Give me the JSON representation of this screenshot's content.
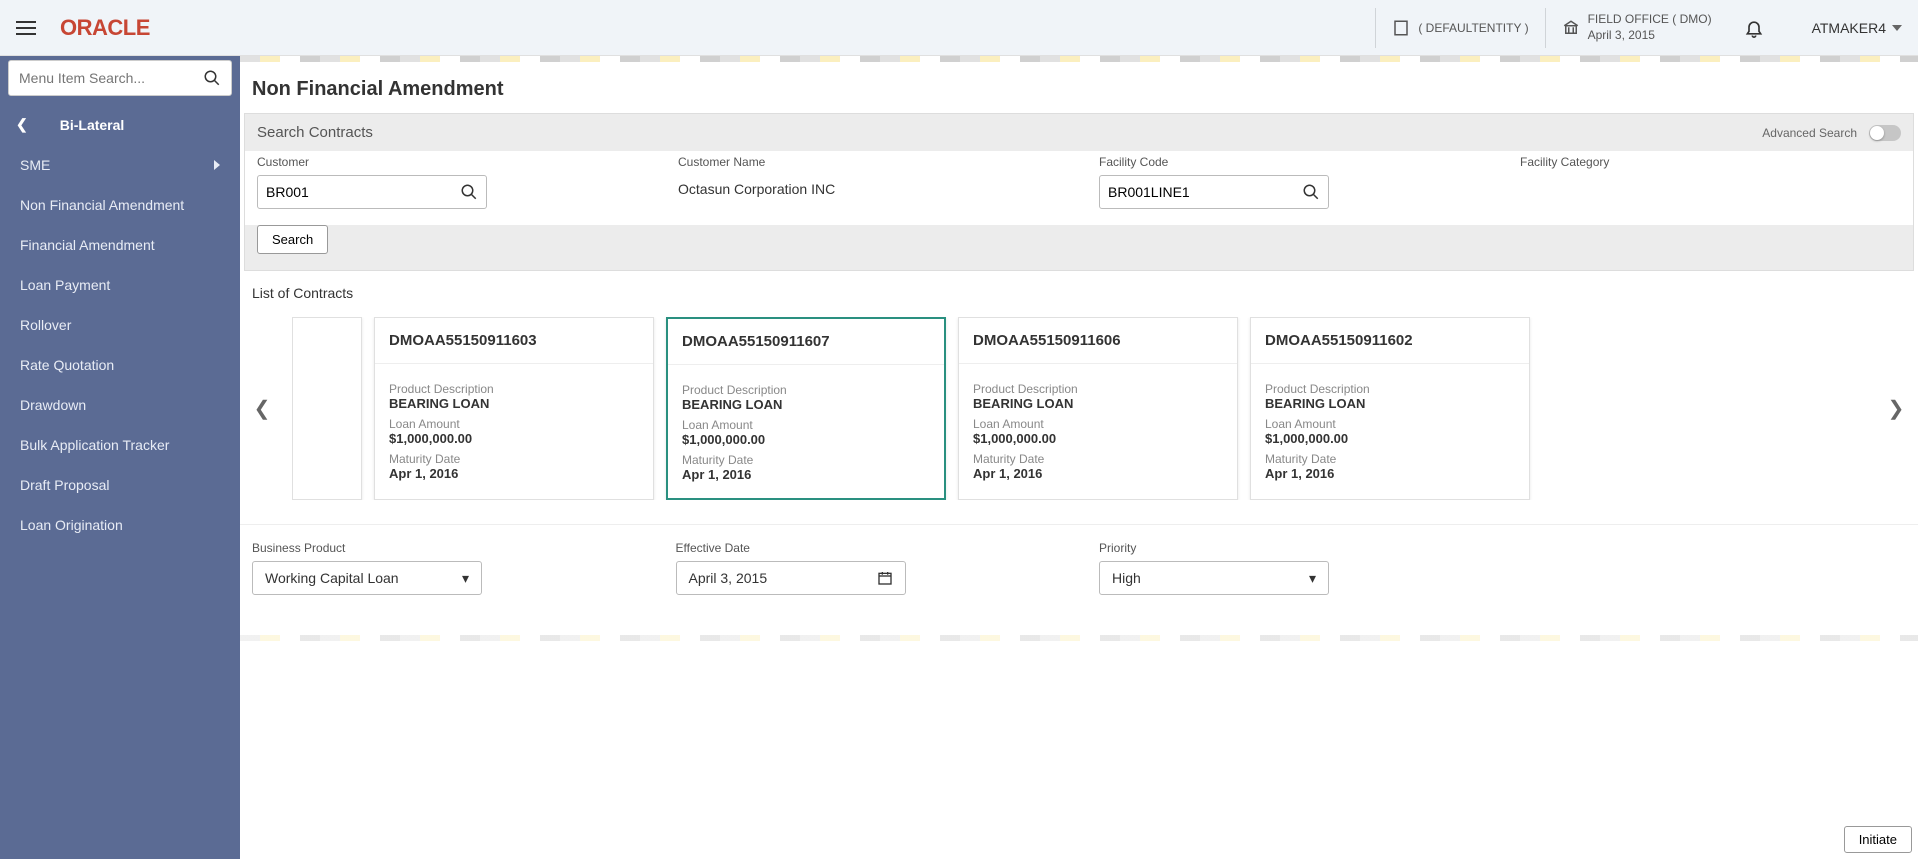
{
  "topbar": {
    "logo_text": "ORACLE",
    "entity_label": "( DEFAULTENTITY )",
    "office_label": "FIELD OFFICE ( DMO)",
    "office_date": "April 3, 2015",
    "user_name": "ATMAKER4"
  },
  "sidebar": {
    "search_placeholder": "Menu Item Search...",
    "header_label": "Bi-Lateral",
    "items": [
      {
        "label": "SME",
        "has_children": true
      },
      {
        "label": "Non Financial Amendment",
        "has_children": false
      },
      {
        "label": "Financial Amendment",
        "has_children": false
      },
      {
        "label": "Loan Payment",
        "has_children": false
      },
      {
        "label": "Rollover",
        "has_children": false
      },
      {
        "label": "Rate Quotation",
        "has_children": false
      },
      {
        "label": "Drawdown",
        "has_children": false
      },
      {
        "label": "Bulk Application Tracker",
        "has_children": false
      },
      {
        "label": "Draft Proposal",
        "has_children": false
      },
      {
        "label": "Loan Origination",
        "has_children": false
      }
    ]
  },
  "page": {
    "title": "Non Financial Amendment",
    "search_contracts_label": "Search Contracts",
    "advanced_search_label": "Advanced Search",
    "customer_label": "Customer",
    "customer_value": "BR001",
    "customer_name_label": "Customer Name",
    "customer_name_value": "Octasun Corporation INC",
    "facility_code_label": "Facility Code",
    "facility_code_value": "BR001LINE1",
    "facility_category_label": "Facility Category",
    "search_button_label": "Search",
    "list_contracts_label": "List of Contracts",
    "business_product_label": "Business Product",
    "business_product_value": "Working Capital Loan",
    "effective_date_label": "Effective Date",
    "effective_date_value": "April 3, 2015",
    "priority_label": "Priority",
    "priority_value": "High",
    "initiate_label": "Initiate"
  },
  "contracts": [
    {
      "id": "DMOAA55150911603",
      "product_desc_label": "Product Description",
      "product_desc": "BEARING LOAN",
      "amount_label": "Loan Amount",
      "amount": "$1,000,000.00",
      "maturity_label": "Maturity Date",
      "maturity": "Apr 1, 2016",
      "selected": false
    },
    {
      "id": "DMOAA55150911607",
      "product_desc_label": "Product Description",
      "product_desc": "BEARING LOAN",
      "amount_label": "Loan Amount",
      "amount": "$1,000,000.00",
      "maturity_label": "Maturity Date",
      "maturity": "Apr 1, 2016",
      "selected": true
    },
    {
      "id": "DMOAA55150911606",
      "product_desc_label": "Product Description",
      "product_desc": "BEARING LOAN",
      "amount_label": "Loan Amount",
      "amount": "$1,000,000.00",
      "maturity_label": "Maturity Date",
      "maturity": "Apr 1, 2016",
      "selected": false
    },
    {
      "id": "DMOAA55150911602",
      "product_desc_label": "Product Description",
      "product_desc": "BEARING LOAN",
      "amount_label": "Loan Amount",
      "amount": "$1,000,000.00",
      "maturity_label": "Maturity Date",
      "maturity": "Apr 1, 2016",
      "selected": false
    }
  ],
  "colors": {
    "sidebar_bg": "#5b6b94",
    "logo_color": "#c74634",
    "selected_border": "#2a9080"
  }
}
